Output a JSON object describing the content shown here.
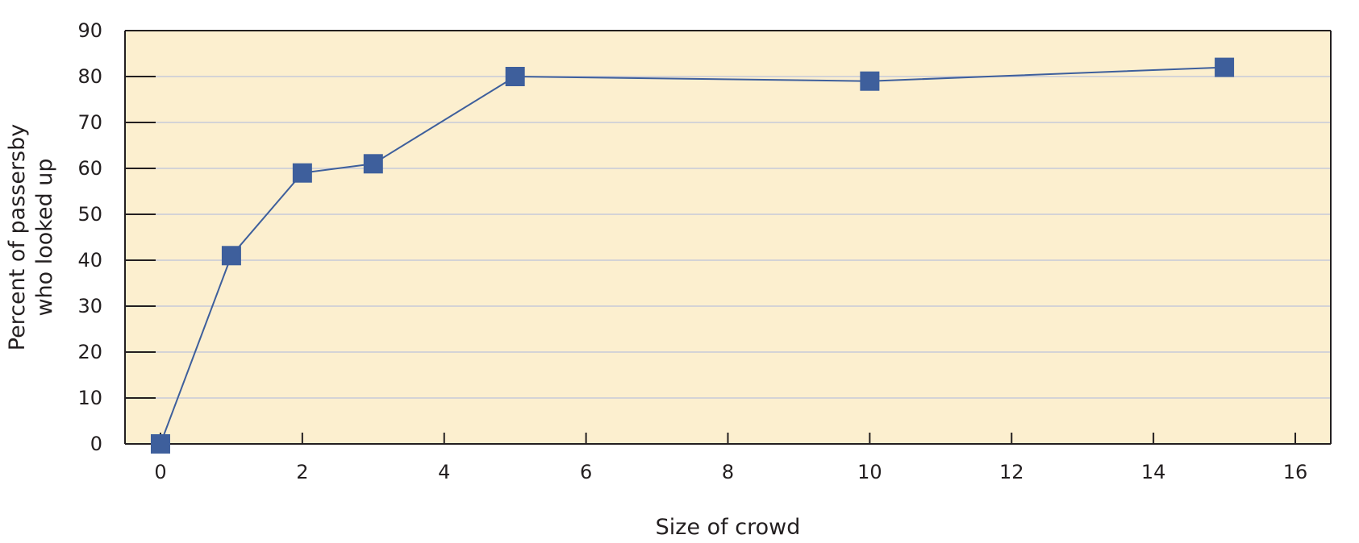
{
  "chart_data": {
    "type": "line",
    "title": "",
    "xlabel": "Size of crowd",
    "ylabel_lines": [
      "Percent of passersby",
      "who looked up"
    ],
    "x": [
      0,
      1,
      2,
      3,
      5,
      10,
      15
    ],
    "series": [
      {
        "values": [
          0,
          41,
          59,
          61,
          80,
          79,
          82
        ]
      }
    ],
    "xlim": [
      -0.5,
      16.5
    ],
    "ylim": [
      0,
      90
    ],
    "xticks": [
      0,
      2,
      4,
      6,
      8,
      10,
      12,
      14,
      16
    ],
    "yticks": [
      0,
      10,
      20,
      30,
      40,
      50,
      60,
      70,
      80,
      90
    ],
    "grid": "horizontal",
    "marker": "square",
    "colors": {
      "plot_background": "#fcefcf",
      "line": "#3e5f9c",
      "marker": "#3e5f9c",
      "gridline": "#c6cad8",
      "axis": "#231f20"
    }
  }
}
